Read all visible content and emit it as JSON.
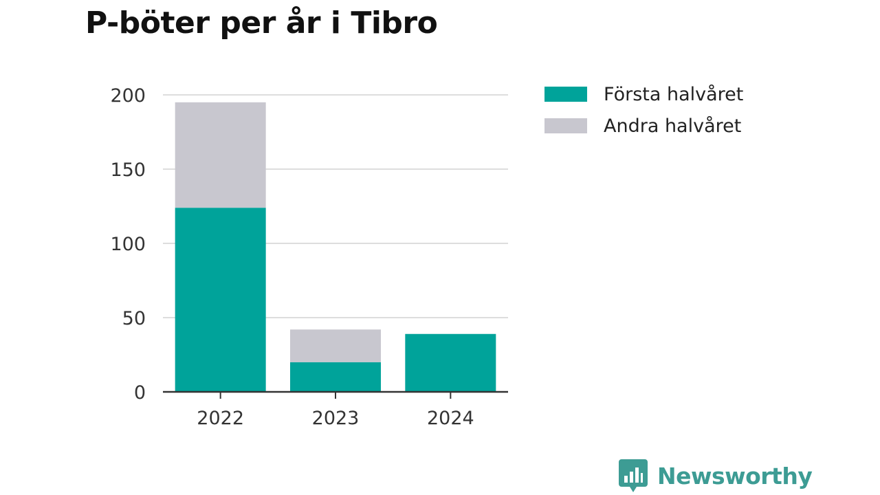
{
  "title": "P-böter per år i Tibro",
  "colors": {
    "first_half": "#00a39a",
    "second_half": "#c8c7cf",
    "grid": "#dddddd",
    "axis": "#333333",
    "text": "#333333",
    "brand": "#3d9c94"
  },
  "chart_data": {
    "type": "bar",
    "stacked": true,
    "categories": [
      "2022",
      "2023",
      "2024"
    ],
    "series": [
      {
        "name": "Första halvåret",
        "values": [
          124,
          20,
          39
        ]
      },
      {
        "name": "Andra halvåret",
        "values": [
          71,
          22,
          0
        ]
      }
    ],
    "title": "P-böter per år i Tibro",
    "xlabel": "",
    "ylabel": "",
    "ylim": [
      0,
      200
    ],
    "yticks": [
      0,
      50,
      100,
      150,
      200
    ],
    "grid": true,
    "legend": "right"
  },
  "legend": {
    "items": [
      {
        "label": "Första halvåret",
        "color": "#00a39a"
      },
      {
        "label": "Andra halvåret",
        "color": "#c8c7cf"
      }
    ]
  },
  "brand": {
    "name": "Newsworthy",
    "icon": "bar-chart-speech-bubble-icon"
  }
}
